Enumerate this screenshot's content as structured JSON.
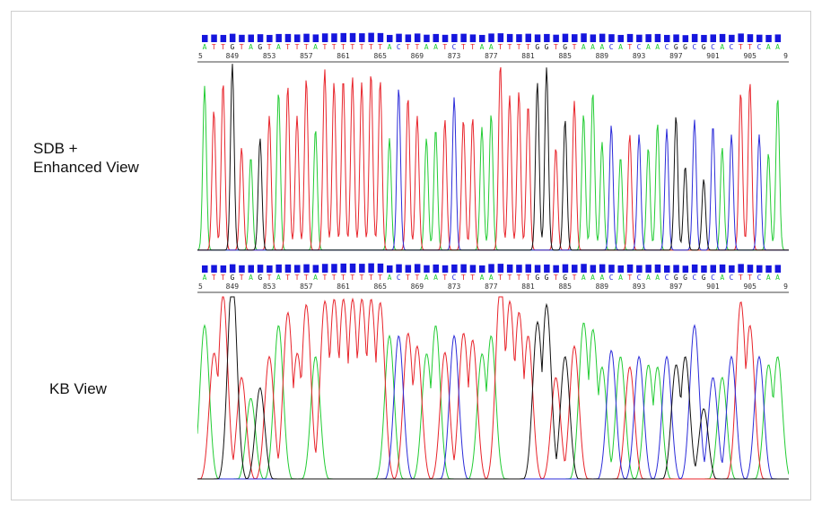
{
  "panels": [
    {
      "label_lines": [
        "SDB +",
        "Enhanced View"
      ],
      "view": "enhanced"
    },
    {
      "label_lines": [
        "KB View"
      ],
      "view": "kb"
    }
  ],
  "sequence": "ATTGTAGTATTTATTTTTTTACTTAATCTTAATTTTGGTGTAAACATCAACGGCGCACTTCAA",
  "colors": {
    "A": "#22cc33",
    "T": "#e8232a",
    "G": "#111111",
    "C": "#2b2bd9",
    "quality_bar": "#1515dd",
    "axis": "#444444"
  },
  "chart_data": {
    "type": "line",
    "tick_labels": [
      "849",
      "853",
      "857",
      "861",
      "865",
      "869",
      "873",
      "877",
      "881",
      "885",
      "889",
      "893",
      "897",
      "901",
      "905"
    ],
    "partial_edge_labels": [
      "5",
      "9"
    ],
    "bases": [
      "A",
      "T",
      "T",
      "G",
      "T",
      "A",
      "G",
      "T",
      "A",
      "T",
      "T",
      "T",
      "A",
      "T",
      "T",
      "T",
      "T",
      "T",
      "T",
      "T",
      "A",
      "C",
      "T",
      "T",
      "A",
      "A",
      "T",
      "C",
      "T",
      "T",
      "A",
      "A",
      "T",
      "T",
      "T",
      "T",
      "G",
      "G",
      "T",
      "G",
      "T",
      "A",
      "A",
      "A",
      "C",
      "A",
      "T",
      "C",
      "A",
      "A",
      "C",
      "G",
      "G",
      "C",
      "G",
      "C",
      "A",
      "C",
      "T",
      "T",
      "C",
      "A",
      "A"
    ],
    "enhanced_peak_heights": [
      0.88,
      0.75,
      0.9,
      1.0,
      0.55,
      0.5,
      0.6,
      0.72,
      0.85,
      0.88,
      0.72,
      0.92,
      0.65,
      0.97,
      0.9,
      0.92,
      0.93,
      0.9,
      0.95,
      0.91,
      0.6,
      0.87,
      0.82,
      0.72,
      0.6,
      0.65,
      0.7,
      0.82,
      0.7,
      0.71,
      0.66,
      0.73,
      1.0,
      0.83,
      0.85,
      0.78,
      0.9,
      0.98,
      0.55,
      0.7,
      0.8,
      0.73,
      0.85,
      0.58,
      0.67,
      0.5,
      0.62,
      0.62,
      0.55,
      0.68,
      0.65,
      0.72,
      0.45,
      0.7,
      0.38,
      0.67,
      0.55,
      0.62,
      0.85,
      0.9,
      0.62,
      0.52,
      0.82
    ],
    "kb_peak_heights": [
      0.75,
      0.6,
      0.9,
      1.0,
      0.5,
      0.4,
      0.45,
      0.6,
      0.75,
      0.8,
      0.6,
      0.85,
      0.6,
      0.85,
      0.86,
      0.86,
      0.86,
      0.86,
      0.86,
      0.86,
      0.7,
      0.7,
      0.7,
      0.65,
      0.6,
      0.75,
      0.62,
      0.7,
      0.7,
      0.68,
      0.6,
      0.7,
      0.95,
      0.85,
      0.8,
      0.7,
      0.75,
      0.85,
      0.5,
      0.6,
      0.65,
      0.75,
      0.72,
      0.55,
      0.63,
      0.6,
      0.55,
      0.6,
      0.55,
      0.55,
      0.6,
      0.55,
      0.6,
      0.75,
      0.35,
      0.5,
      0.5,
      0.6,
      0.85,
      0.75,
      0.6,
      0.55,
      0.6
    ],
    "quality_values": [
      0.62,
      0.65,
      0.62,
      0.72,
      0.63,
      0.65,
      0.68,
      0.62,
      0.7,
      0.7,
      0.66,
      0.72,
      0.66,
      0.75,
      0.75,
      0.78,
      0.78,
      0.76,
      0.8,
      0.78,
      0.62,
      0.72,
      0.66,
      0.74,
      0.64,
      0.7,
      0.63,
      0.7,
      0.72,
      0.66,
      0.62,
      0.74,
      0.76,
      0.7,
      0.68,
      0.72,
      0.66,
      0.7,
      0.64,
      0.72,
      0.68,
      0.75,
      0.66,
      0.72,
      0.68,
      0.62,
      0.7,
      0.64,
      0.68,
      0.7,
      0.62,
      0.66,
      0.6,
      0.7,
      0.62,
      0.66,
      0.7,
      0.63,
      0.74,
      0.68,
      0.64,
      0.62,
      0.66
    ],
    "grid": false
  }
}
